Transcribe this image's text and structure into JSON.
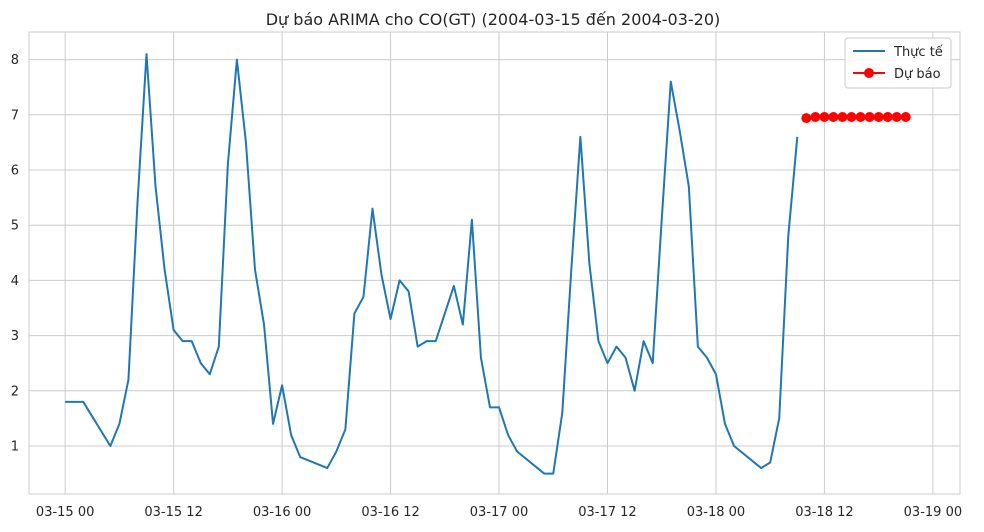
{
  "chart_data": {
    "type": "line",
    "title": "Dự báo ARIMA cho CO(GT) (2004-03-15 đến 2004-03-20)",
    "xlabel": "",
    "ylabel": "",
    "x_ticks": [
      "03-15 00",
      "03-15 12",
      "03-16 00",
      "03-16 12",
      "03-17 00",
      "03-17 12",
      "03-18 00",
      "03-18 12",
      "03-19 00"
    ],
    "y_ticks": [
      1,
      2,
      3,
      4,
      5,
      6,
      7,
      8
    ],
    "xlim": [
      "2004-03-14 20:00",
      "2004-03-19 03:00"
    ],
    "ylim": [
      0.13,
      8.5
    ],
    "grid": true,
    "legend_position": "top-right",
    "series": [
      {
        "name": "Thực tế",
        "color": "#1f77b4",
        "marker": "none",
        "points": [
          [
            "2004-03-15 00:00",
            1.8
          ],
          [
            "2004-03-15 01:00",
            1.8
          ],
          [
            "2004-03-15 02:00",
            1.8
          ],
          [
            "2004-03-15 05:00",
            1.0
          ],
          [
            "2004-03-15 06:00",
            1.4
          ],
          [
            "2004-03-15 07:00",
            2.2
          ],
          [
            "2004-03-15 08:00",
            5.4
          ],
          [
            "2004-03-15 09:00",
            8.1
          ],
          [
            "2004-03-15 10:00",
            5.7
          ],
          [
            "2004-03-15 11:00",
            4.2
          ],
          [
            "2004-03-15 12:00",
            3.1
          ],
          [
            "2004-03-15 13:00",
            2.9
          ],
          [
            "2004-03-15 14:00",
            2.9
          ],
          [
            "2004-03-15 15:00",
            2.5
          ],
          [
            "2004-03-15 16:00",
            2.3
          ],
          [
            "2004-03-15 17:00",
            2.8
          ],
          [
            "2004-03-15 18:00",
            6.1
          ],
          [
            "2004-03-15 19:00",
            8.0
          ],
          [
            "2004-03-15 20:00",
            6.5
          ],
          [
            "2004-03-15 21:00",
            4.2
          ],
          [
            "2004-03-15 22:00",
            3.2
          ],
          [
            "2004-03-15 23:00",
            1.4
          ],
          [
            "2004-03-16 00:00",
            2.1
          ],
          [
            "2004-03-16 01:00",
            1.2
          ],
          [
            "2004-03-16 02:00",
            0.8
          ],
          [
            "2004-03-16 05:00",
            0.6
          ],
          [
            "2004-03-16 06:00",
            0.9
          ],
          [
            "2004-03-16 07:00",
            1.3
          ],
          [
            "2004-03-16 08:00",
            3.4
          ],
          [
            "2004-03-16 09:00",
            3.7
          ],
          [
            "2004-03-16 10:00",
            5.3
          ],
          [
            "2004-03-16 11:00",
            4.1
          ],
          [
            "2004-03-16 12:00",
            3.3
          ],
          [
            "2004-03-16 13:00",
            4.0
          ],
          [
            "2004-03-16 14:00",
            3.8
          ],
          [
            "2004-03-16 15:00",
            2.8
          ],
          [
            "2004-03-16 16:00",
            2.9
          ],
          [
            "2004-03-16 17:00",
            2.9
          ],
          [
            "2004-03-16 19:00",
            3.9
          ],
          [
            "2004-03-16 20:00",
            3.2
          ],
          [
            "2004-03-16 21:00",
            5.1
          ],
          [
            "2004-03-16 22:00",
            2.6
          ],
          [
            "2004-03-16 23:00",
            1.7
          ],
          [
            "2004-03-17 00:00",
            1.7
          ],
          [
            "2004-03-17 01:00",
            1.2
          ],
          [
            "2004-03-17 02:00",
            0.9
          ],
          [
            "2004-03-17 05:00",
            0.5
          ],
          [
            "2004-03-17 06:00",
            0.5
          ],
          [
            "2004-03-17 07:00",
            1.6
          ],
          [
            "2004-03-17 08:00",
            4.2
          ],
          [
            "2004-03-17 09:00",
            6.6
          ],
          [
            "2004-03-17 10:00",
            4.3
          ],
          [
            "2004-03-17 11:00",
            2.9
          ],
          [
            "2004-03-17 12:00",
            2.5
          ],
          [
            "2004-03-17 13:00",
            2.8
          ],
          [
            "2004-03-17 14:00",
            2.6
          ],
          [
            "2004-03-17 15:00",
            2.0
          ],
          [
            "2004-03-17 16:00",
            2.9
          ],
          [
            "2004-03-17 17:00",
            2.5
          ],
          [
            "2004-03-17 18:00",
            5.1
          ],
          [
            "2004-03-17 19:00",
            7.6
          ],
          [
            "2004-03-17 20:00",
            6.7
          ],
          [
            "2004-03-17 21:00",
            5.7
          ],
          [
            "2004-03-17 22:00",
            2.8
          ],
          [
            "2004-03-17 23:00",
            2.6
          ],
          [
            "2004-03-18 00:00",
            2.3
          ],
          [
            "2004-03-18 01:00",
            1.4
          ],
          [
            "2004-03-18 02:00",
            1.0
          ],
          [
            "2004-03-18 05:00",
            0.6
          ],
          [
            "2004-03-18 06:00",
            0.7
          ],
          [
            "2004-03-18 07:00",
            1.5
          ],
          [
            "2004-03-18 08:00",
            4.8
          ],
          [
            "2004-03-18 09:00",
            6.6
          ]
        ]
      },
      {
        "name": "Dự báo",
        "color": "#ff0000",
        "marker": "circle",
        "points": [
          [
            "2004-03-18 10:00",
            6.94
          ],
          [
            "2004-03-18 11:00",
            6.96
          ],
          [
            "2004-03-18 12:00",
            6.96
          ],
          [
            "2004-03-18 13:00",
            6.96
          ],
          [
            "2004-03-18 14:00",
            6.96
          ],
          [
            "2004-03-18 15:00",
            6.96
          ],
          [
            "2004-03-18 16:00",
            6.96
          ],
          [
            "2004-03-18 17:00",
            6.96
          ],
          [
            "2004-03-18 18:00",
            6.96
          ],
          [
            "2004-03-18 19:00",
            6.96
          ],
          [
            "2004-03-18 20:00",
            6.96
          ],
          [
            "2004-03-18 21:00",
            6.96
          ]
        ]
      }
    ]
  }
}
